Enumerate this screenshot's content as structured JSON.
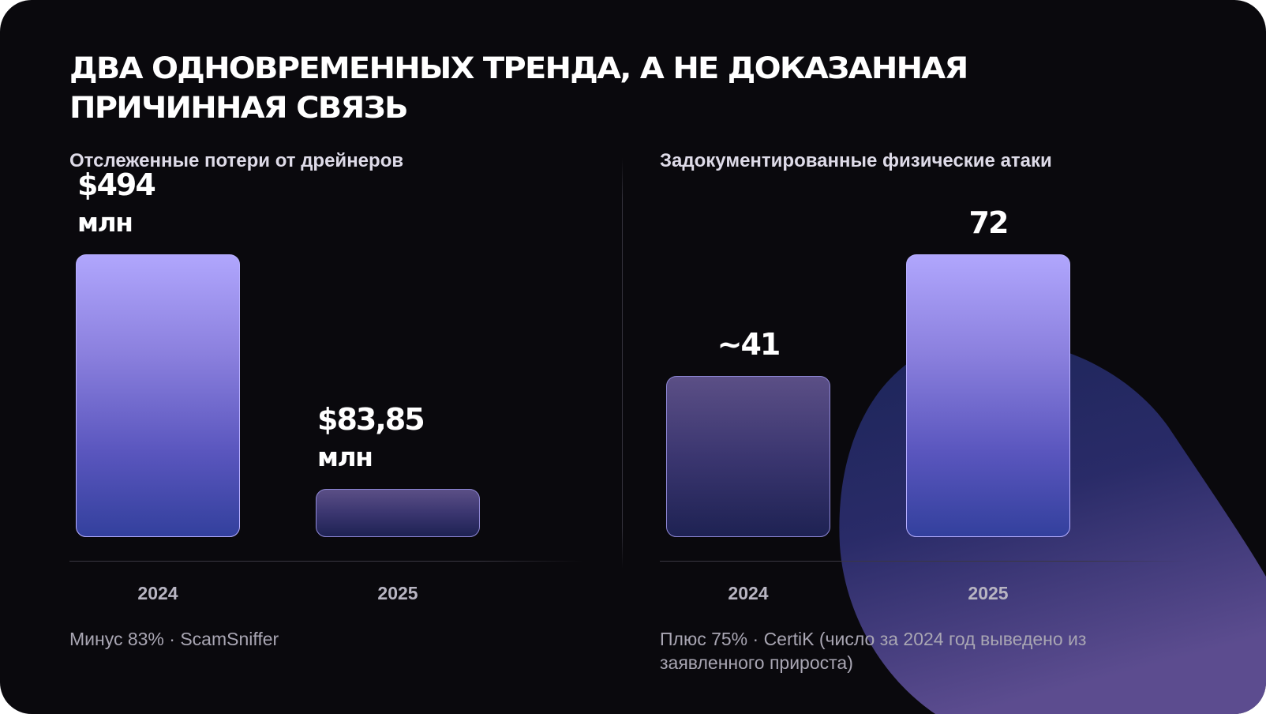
{
  "title": "Два одновременных тренда, а не доказанная причинная связь",
  "colors": {
    "background": "#0a090d",
    "bar_bright": "#a89dfb",
    "bar_dim": "#4a427a",
    "accent_blob": "#3b3a8a"
  },
  "chart_data": [
    {
      "type": "bar",
      "title": "Отслеженные потери от дрейнеров",
      "categories": [
        "2024",
        "2025"
      ],
      "values": [
        494,
        83.85
      ],
      "value_labels": [
        "$494",
        "$83,85"
      ],
      "value_unit": "млн",
      "ylim": [
        0,
        494
      ],
      "grid": false,
      "footnote": "Минус 83% · ScamSniffer"
    },
    {
      "type": "bar",
      "title": "Задокументированные физические атаки",
      "categories": [
        "2024",
        "2025"
      ],
      "values": [
        41,
        72
      ],
      "value_labels": [
        "~41",
        "72"
      ],
      "value_unit": "",
      "ylim": [
        0,
        72
      ],
      "grid": false,
      "footnote": "Плюс 75% · CertiK (число за 2024 год выведено из заявленного прироста)"
    }
  ]
}
